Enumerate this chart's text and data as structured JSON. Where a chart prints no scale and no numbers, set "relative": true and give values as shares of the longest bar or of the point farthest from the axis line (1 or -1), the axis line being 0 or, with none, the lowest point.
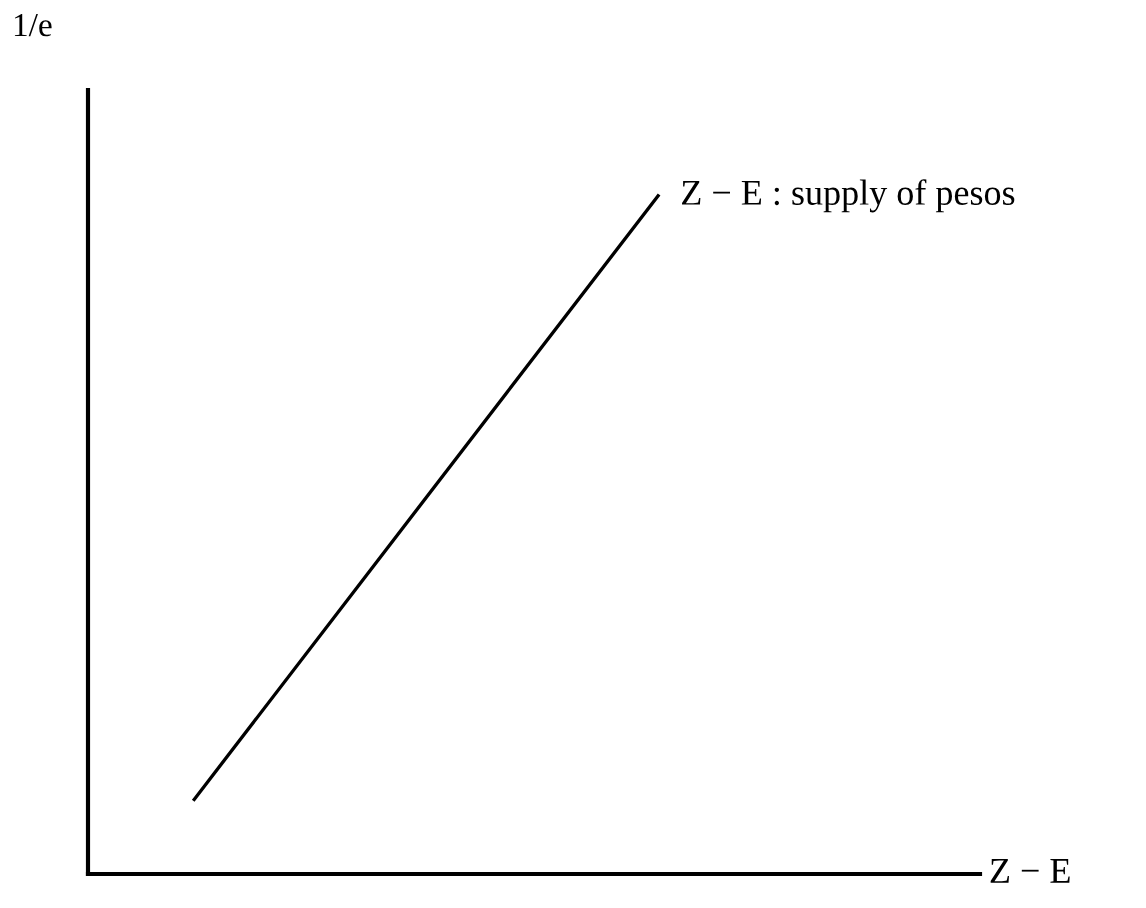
{
  "chart_data": {
    "type": "line",
    "relative": true,
    "xlabel": "Z − E",
    "ylabel": "1/e",
    "categories": [
      null,
      null
    ],
    "series": [
      {
        "color": "#000000",
        "values": [
          0.11,
          1
        ]
      }
    ],
    "annotations": [
      "Z − E : supply of pesos"
    ],
    "grid": false,
    "legend": false,
    "marker": "none",
    "line_style": "solid"
  }
}
